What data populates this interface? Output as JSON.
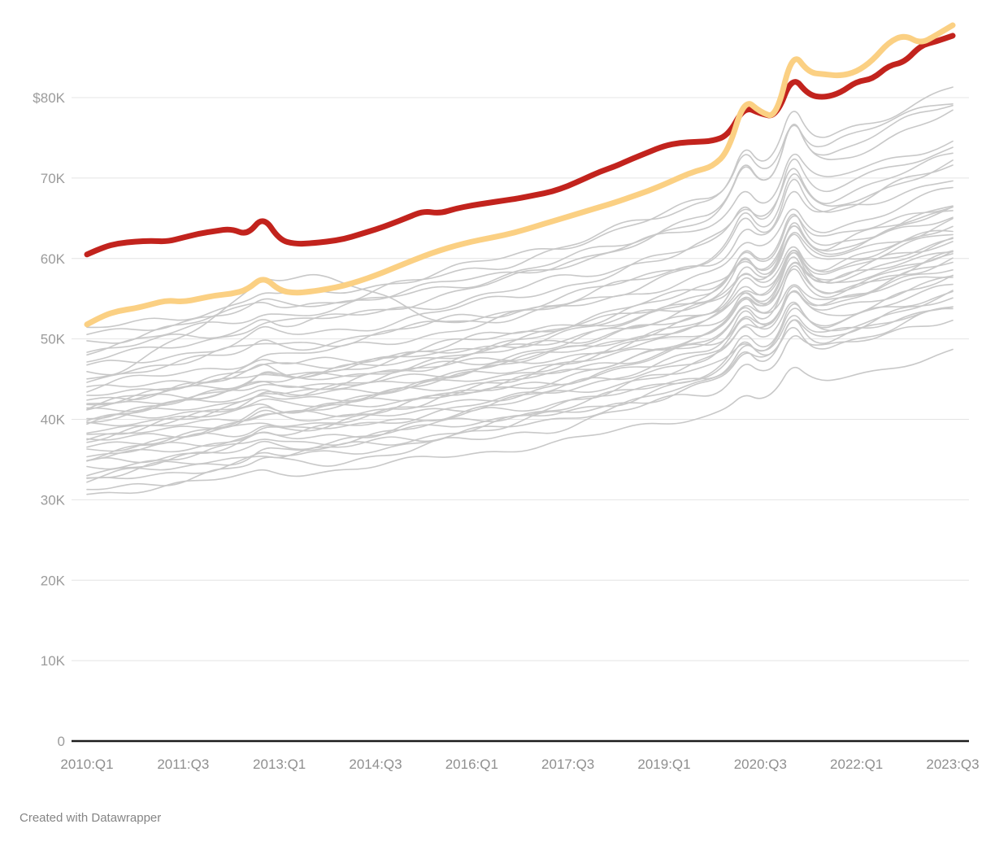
{
  "footer": {
    "credit": "Created with Datawrapper"
  },
  "chart_data": {
    "type": "line",
    "title": "",
    "description": "Quarterly dollar series (thousands) from 2010:Q1 to 2023:Q3. Two highlighted lines (red, yellow) over many unlabeled gray background lines. No legend visible.",
    "x": {
      "quarters_count": 55,
      "tick_labels": [
        "2010:Q1",
        "2011:Q3",
        "2013:Q1",
        "2014:Q3",
        "2016:Q1",
        "2017:Q3",
        "2019:Q1",
        "2020:Q3",
        "2022:Q1",
        "2023:Q3"
      ],
      "tick_quarter_indices": [
        0,
        6,
        12,
        18,
        24,
        30,
        36,
        42,
        48,
        54
      ]
    },
    "y": {
      "ticks": [
        {
          "label": "$80K",
          "value": 80
        },
        {
          "label": "70K",
          "value": 70
        },
        {
          "label": "60K",
          "value": 60
        },
        {
          "label": "50K",
          "value": 50
        },
        {
          "label": "40K",
          "value": 40
        },
        {
          "label": "30K",
          "value": 30
        },
        {
          "label": "20K",
          "value": 20
        },
        {
          "label": "10K",
          "value": 10
        },
        {
          "label": "0",
          "value": 0
        }
      ],
      "range": [
        0,
        92
      ],
      "grid": true
    },
    "colors": {
      "red": "#c2231d",
      "yellow": "#fbd083",
      "gray": "#c8c8c8",
      "gridline": "#e4e4e4",
      "baseline": "#1c1c1c"
    },
    "series_highlight": [
      {
        "id": "red-line",
        "color_key": "red",
        "values": [
          60.5,
          61.4,
          61.9,
          62.1,
          62.2,
          62.1,
          62.6,
          63.1,
          63.4,
          63.7,
          62.9,
          65.3,
          62.3,
          61.8,
          61.9,
          62.1,
          62.4,
          63.0,
          63.6,
          64.3,
          65.1,
          65.9,
          65.6,
          66.2,
          66.6,
          66.9,
          67.2,
          67.5,
          67.9,
          68.3,
          69.0,
          69.9,
          70.8,
          71.5,
          72.4,
          73.2,
          74.0,
          74.4,
          74.5,
          74.6,
          75.3,
          78.9,
          78.0,
          77.6,
          82.8,
          80.3,
          80.0,
          80.6,
          82.0,
          82.3,
          84.0,
          84.4,
          86.5,
          87.0,
          87.7
        ]
      },
      {
        "id": "yellow-line",
        "color_key": "yellow",
        "values": [
          51.8,
          52.9,
          53.5,
          53.8,
          54.3,
          54.8,
          54.6,
          55.0,
          55.4,
          55.6,
          56.1,
          57.8,
          56.0,
          55.7,
          55.9,
          56.2,
          56.6,
          57.2,
          57.9,
          58.7,
          59.5,
          60.3,
          61.0,
          61.6,
          62.1,
          62.5,
          62.9,
          63.4,
          64.0,
          64.6,
          65.2,
          65.8,
          66.4,
          67.0,
          67.7,
          68.4,
          69.2,
          70.1,
          70.9,
          71.4,
          73.3,
          79.9,
          78.2,
          77.5,
          85.8,
          83.1,
          82.9,
          82.7,
          83.2,
          84.6,
          86.9,
          87.8,
          86.7,
          87.8,
          89.0
        ]
      }
    ],
    "gray_background": {
      "color_key": "gray",
      "growth_profile": [
        0,
        0.012,
        0.024,
        0.036,
        0.048,
        0.06,
        0.072,
        0.084,
        0.096,
        0.108,
        0.12,
        0.132,
        0.142,
        0.15,
        0.158,
        0.166,
        0.176,
        0.188,
        0.2,
        0.214,
        0.228,
        0.242,
        0.256,
        0.27,
        0.284,
        0.298,
        0.312,
        0.328,
        0.344,
        0.36,
        0.378,
        0.396,
        0.416,
        0.436,
        0.458,
        0.48,
        0.502,
        0.524,
        0.546,
        0.566,
        0.586,
        0.61,
        0.64,
        0.67,
        0.72,
        0.76,
        0.79,
        0.815,
        0.84,
        0.865,
        0.895,
        0.925,
        0.95,
        0.975,
        1.0
      ],
      "line_fields": [
        "start",
        "end",
        "bump_2012q4",
        "spike_2020q2",
        "spike_2021q1",
        "wiggle",
        "seed",
        "hump_center",
        "hump_width",
        "hump_amp"
      ],
      "lines": [
        [
          50.9,
          79.9,
          1.2,
          5.5,
          6.5,
          0.8,
          1,
          0,
          1,
          0
        ],
        [
          50.5,
          74.7,
          0.8,
          4.0,
          6.0,
          0.7,
          2,
          0,
          1,
          0
        ],
        [
          49.5,
          81.4,
          1.0,
          6.0,
          6.5,
          0.9,
          3,
          0,
          1,
          0
        ],
        [
          48.8,
          78.1,
          0.7,
          5.0,
          8.0,
          0.8,
          4,
          0,
          1,
          0
        ],
        [
          48.3,
          72.5,
          1.5,
          3.5,
          6.5,
          0.9,
          5,
          0,
          1,
          0
        ],
        [
          47.1,
          79.4,
          0.9,
          5.5,
          8.5,
          0.7,
          6,
          0,
          1,
          0
        ],
        [
          46.3,
          73.9,
          1.1,
          4.5,
          7.5,
          0.8,
          7,
          0,
          1,
          0
        ],
        [
          45.6,
          70.3,
          0.6,
          4.0,
          6.0,
          0.9,
          8,
          0,
          1,
          0
        ],
        [
          45.1,
          71.8,
          1.3,
          5.0,
          7.0,
          0.7,
          9,
          0,
          1,
          0
        ],
        [
          44.8,
          68.5,
          1.5,
          3.0,
          5.0,
          0.8,
          10,
          13,
          7,
          9.5
        ],
        [
          43.8,
          71.5,
          0.8,
          4.5,
          8.0,
          0.8,
          11,
          0,
          1,
          0
        ],
        [
          43.3,
          66.1,
          1.0,
          3.5,
          5.5,
          0.9,
          12,
          0,
          1,
          0
        ],
        [
          42.8,
          67.1,
          0.7,
          4.0,
          6.5,
          0.8,
          13,
          0,
          1,
          0
        ],
        [
          42.4,
          64.6,
          1.2,
          3.0,
          5.0,
          0.9,
          14,
          0,
          1,
          0
        ],
        [
          42.1,
          66.5,
          0.9,
          4.5,
          7.0,
          0.7,
          15,
          0,
          1,
          0
        ],
        [
          41.8,
          65.8,
          1.1,
          3.5,
          6.0,
          0.8,
          16,
          0,
          1,
          0
        ],
        [
          41.4,
          63.6,
          0.8,
          4.0,
          5.5,
          0.9,
          17,
          0,
          1,
          0
        ],
        [
          41.1,
          65.5,
          1.4,
          5.0,
          7.5,
          0.7,
          18,
          0,
          1,
          0
        ],
        [
          40.9,
          62.6,
          0.6,
          3.0,
          5.0,
          0.8,
          19,
          0,
          1,
          0
        ],
        [
          40.6,
          64.1,
          1.0,
          4.5,
          6.5,
          0.9,
          20,
          0,
          1,
          0
        ],
        [
          40.2,
          61.8,
          0.9,
          3.5,
          5.5,
          0.8,
          21,
          0,
          1,
          0
        ],
        [
          39.6,
          63.1,
          1.2,
          4.0,
          6.0,
          0.7,
          22,
          0,
          1,
          0
        ],
        [
          39.3,
          62.1,
          0.7,
          3.0,
          5.0,
          0.9,
          23,
          0,
          1,
          0
        ],
        [
          38.9,
          61.4,
          1.0,
          4.5,
          7.0,
          0.8,
          24,
          0,
          1,
          0
        ],
        [
          38.6,
          61.0,
          0.8,
          3.5,
          5.5,
          0.7,
          25,
          0,
          1,
          0
        ],
        [
          38.2,
          60.4,
          1.1,
          4.0,
          6.5,
          0.9,
          26,
          0,
          1,
          0
        ],
        [
          37.7,
          59.4,
          0.6,
          3.0,
          4.5,
          0.8,
          27,
          0,
          1,
          0
        ],
        [
          37.3,
          60.3,
          1.3,
          4.5,
          6.0,
          0.7,
          28,
          0,
          1,
          0
        ],
        [
          37.0,
          58.5,
          0.9,
          3.5,
          5.0,
          0.9,
          29,
          0,
          1,
          0
        ],
        [
          36.5,
          60.1,
          1.0,
          4.0,
          6.5,
          0.8,
          30,
          0,
          1,
          0
        ],
        [
          36.2,
          57.9,
          0.7,
          3.0,
          4.5,
          0.7,
          31,
          0,
          1,
          0
        ],
        [
          35.7,
          57.4,
          1.1,
          3.5,
          5.5,
          0.9,
          32,
          0,
          1,
          0
        ],
        [
          35.2,
          56.4,
          0.8,
          4.0,
          5.0,
          0.8,
          33,
          0,
          1,
          0
        ],
        [
          34.8,
          59.0,
          1.2,
          4.5,
          6.0,
          0.7,
          34,
          0,
          1,
          0
        ],
        [
          34.3,
          56.0,
          0.6,
          3.0,
          4.5,
          0.9,
          35,
          0,
          1,
          0
        ],
        [
          34.0,
          54.5,
          1.0,
          3.5,
          5.0,
          0.8,
          36,
          0,
          1,
          0
        ],
        [
          33.5,
          55.5,
          0.9,
          4.0,
          5.5,
          0.7,
          37,
          0,
          1,
          0
        ],
        [
          32.8,
          53.5,
          0.7,
          3.0,
          4.5,
          0.9,
          38,
          0,
          1,
          0
        ],
        [
          32.5,
          55.0,
          1.1,
          3.5,
          5.0,
          0.8,
          39,
          0,
          1,
          0
        ],
        [
          32.0,
          54.2,
          0.8,
          4.0,
          5.5,
          0.7,
          40,
          0,
          1,
          0
        ],
        [
          31.2,
          53.0,
          1.0,
          3.0,
          4.5,
          0.9,
          41,
          0,
          1,
          0
        ],
        [
          30.7,
          48.4,
          0.5,
          2.0,
          3.0,
          0.6,
          42,
          0,
          1,
          0
        ]
      ]
    }
  }
}
